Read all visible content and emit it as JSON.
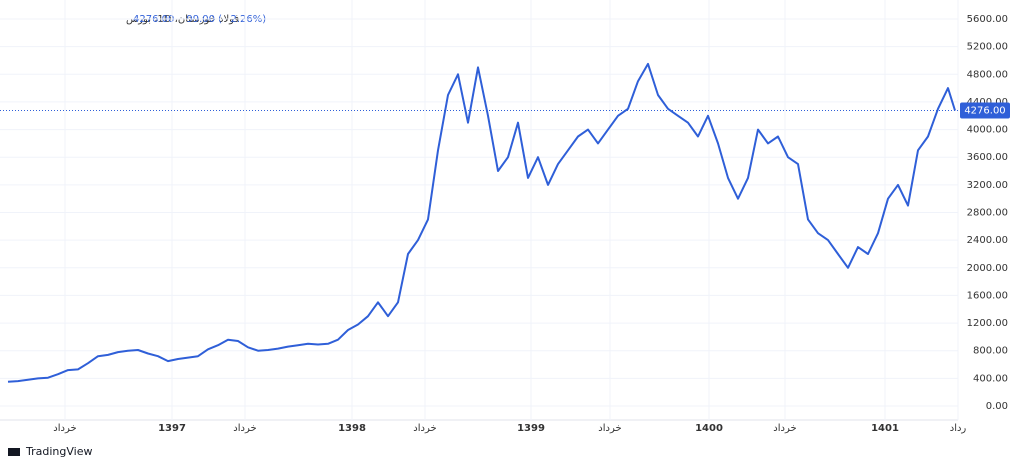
{
  "chart_data": {
    "type": "line",
    "symbol": "فولاد خوزستان، 1D، بورس",
    "change": "−99.00 (−2.26%)",
    "current_price": {
      "value": 4276,
      "label": "4276.00"
    },
    "brand": "TradingView",
    "color": "#2f5fd8",
    "grid": true,
    "x": [
      0,
      1,
      2,
      3,
      4,
      5,
      6,
      7,
      8,
      9,
      10,
      11,
      12,
      13,
      14,
      15,
      16,
      17,
      18,
      19,
      20,
      21,
      22,
      23,
      24,
      25,
      26,
      27,
      28,
      29,
      30,
      31,
      32,
      33,
      34,
      35,
      36,
      37,
      38,
      39,
      40,
      41,
      42,
      43,
      44,
      45,
      46,
      47,
      48,
      49,
      50,
      51,
      52,
      53,
      54,
      55,
      56,
      57,
      58,
      59,
      60,
      61,
      62,
      63,
      64,
      65,
      66,
      67,
      68,
      69,
      70,
      71,
      72,
      73,
      74,
      75,
      76,
      77,
      78,
      79,
      80,
      81,
      82,
      83,
      84,
      85,
      86,
      87,
      88,
      89,
      90,
      91,
      92,
      93,
      94,
      94.7
    ],
    "values": [
      350,
      360,
      380,
      400,
      410,
      460,
      520,
      530,
      620,
      720,
      740,
      780,
      800,
      810,
      760,
      720,
      650,
      680,
      700,
      720,
      820,
      880,
      960,
      940,
      850,
      800,
      810,
      830,
      860,
      880,
      900,
      890,
      900,
      960,
      1100,
      1180,
      1300,
      1500,
      1300,
      1500,
      2200,
      2400,
      2700,
      3700,
      4500,
      4800,
      4100,
      4900,
      4200,
      3400,
      3600,
      4100,
      3300,
      3600,
      3200,
      3500,
      3700,
      3900,
      4000,
      3800,
      4000,
      4200,
      4300,
      4700,
      4950,
      4500,
      4300,
      4200,
      4100,
      3900,
      4200,
      3800,
      3300,
      3000,
      3300,
      4000,
      3800,
      3900,
      3600,
      3500,
      2700,
      2500,
      2400,
      2200,
      2000,
      2300,
      2200,
      2500,
      3000,
      3200,
      2900,
      3700,
      3900,
      4300,
      4600,
      4276
    ],
    "xlim": [
      0,
      95
    ],
    "xticks": [
      {
        "value": 5.7,
        "label": "خرداد"
      },
      {
        "value": 16.4,
        "label": "1397"
      },
      {
        "value": 23.7,
        "label": "خرداد"
      },
      {
        "value": 34.4,
        "label": "1398"
      },
      {
        "value": 41.7,
        "label": "خرداد"
      },
      {
        "value": 52.3,
        "label": "1399"
      },
      {
        "value": 60.2,
        "label": "خرداد"
      },
      {
        "value": 70.1,
        "label": "1400"
      },
      {
        "value": 77.7,
        "label": "خرداد"
      },
      {
        "value": 87.7,
        "label": "1401"
      },
      {
        "value": 95,
        "label": "رداد"
      }
    ],
    "ylim": [
      0,
      5600
    ],
    "yticks": [
      {
        "value": 0,
        "label": "0.00"
      },
      {
        "value": 400,
        "label": "400.00"
      },
      {
        "value": 800,
        "label": "800.00"
      },
      {
        "value": 1200,
        "label": "1200.00"
      },
      {
        "value": 1600,
        "label": "1600.00"
      },
      {
        "value": 2000,
        "label": "2000.00"
      },
      {
        "value": 2400,
        "label": "2400.00"
      },
      {
        "value": 2800,
        "label": "2800.00"
      },
      {
        "value": 3200,
        "label": "3200.00"
      },
      {
        "value": 3600,
        "label": "3600.00"
      },
      {
        "value": 4000,
        "label": "4000.00"
      },
      {
        "value": 4400,
        "label": "4400.00"
      },
      {
        "value": 4800,
        "label": "4800.00"
      },
      {
        "value": 5200,
        "label": "5200.00"
      },
      {
        "value": 5600,
        "label": "5600.00"
      }
    ]
  }
}
